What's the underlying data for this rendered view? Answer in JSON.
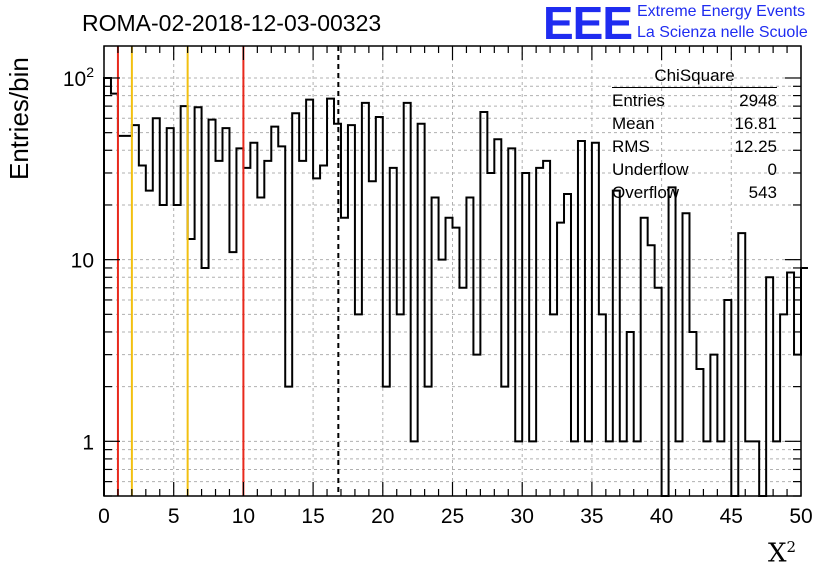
{
  "header": {
    "title": "ROMA-02-2018-12-03-00323",
    "logo_text": "EEE",
    "logo_line1": "Extreme Energy Events",
    "logo_line2": "La Scienza nelle Scuole",
    "logo_color": "#1f2cf0"
  },
  "stats_box": {
    "title": "ChiSquare",
    "rows": [
      {
        "label": "Entries",
        "value": "2948"
      },
      {
        "label": "Mean",
        "value": "16.81"
      },
      {
        "label": "RMS",
        "value": "12.25"
      },
      {
        "label": "Underflow",
        "value": "0"
      },
      {
        "label": "Overflow",
        "value": "543"
      }
    ]
  },
  "chart_data": {
    "type": "histogram",
    "title": "ROMA-02-2018-12-03-00323",
    "xlabel": "X",
    "xlabel_superscript": "2",
    "ylabel": "Entries/bin",
    "xlim": [
      0,
      50
    ],
    "ylim": [
      0.5,
      150
    ],
    "yscale": "log",
    "grid": true,
    "bin_width": 0.5,
    "x_ticks": [
      "0",
      "5",
      "10",
      "15",
      "20",
      "25",
      "30",
      "35",
      "40",
      "45",
      "50"
    ],
    "y_ticks": [
      "1",
      "10",
      "10^2"
    ],
    "values": [
      100,
      82,
      48,
      48,
      55,
      33,
      24,
      60,
      20,
      53,
      20,
      70,
      13,
      69,
      9,
      59,
      35,
      53,
      11,
      41,
      32,
      44,
      22,
      35,
      54,
      42,
      2,
      64,
      35,
      76,
      28,
      33,
      77,
      56,
      17,
      55,
      5,
      73,
      27,
      61,
      2,
      32,
      5,
      73,
      1,
      56,
      2,
      22,
      10,
      17,
      15,
      7,
      22,
      3,
      65,
      30,
      46,
      2,
      41,
      1,
      30,
      1,
      32,
      35,
      5,
      16,
      23,
      1,
      45,
      1,
      44,
      5,
      1,
      24,
      1,
      4,
      1,
      17,
      12,
      7,
      0.5,
      25,
      1,
      18,
      4,
      2.5,
      1,
      3,
      1,
      6,
      0.5,
      14,
      1,
      1,
      0.5,
      8,
      1,
      5,
      8.5,
      3,
      9
    ],
    "vertical_lines": [
      {
        "x": 1,
        "color": "#e8291c",
        "style": "solid"
      },
      {
        "x": 2,
        "color": "#f2c010",
        "style": "solid"
      },
      {
        "x": 6,
        "color": "#f2c010",
        "style": "solid"
      },
      {
        "x": 10,
        "color": "#e8291c",
        "style": "solid"
      },
      {
        "x": 16.81,
        "color": "#000000",
        "style": "dashed"
      }
    ]
  }
}
